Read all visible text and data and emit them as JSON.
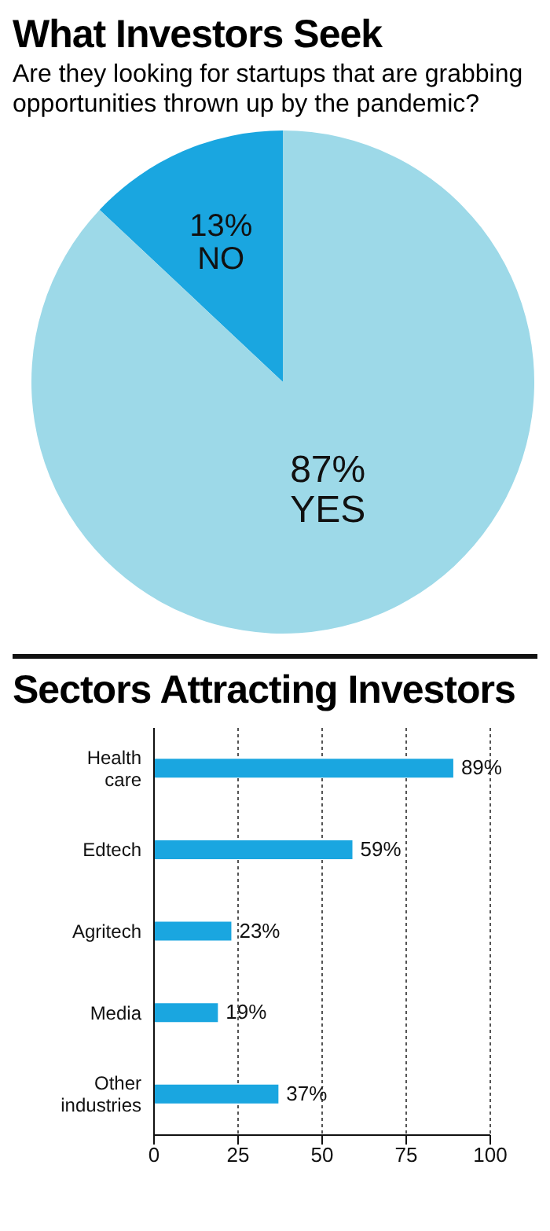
{
  "chart_data": [
    {
      "type": "pie",
      "title": "What Investors Seek",
      "subtitle": "Are they looking for startups that are grabbing opportunities thrown up by the pandemic?",
      "categories": [
        "NO",
        "YES"
      ],
      "values": [
        13,
        87
      ],
      "colors": [
        "#1aa6e0",
        "#9dd9e8"
      ],
      "value_labels": [
        "13%",
        "87%"
      ]
    },
    {
      "type": "bar",
      "orientation": "horizontal",
      "title": "Sectors Attracting Investors",
      "categories": [
        "Health care",
        "Edtech",
        "Agritech",
        "Media",
        "Other industries"
      ],
      "values": [
        89,
        59,
        23,
        19,
        37
      ],
      "color": "#1aa6e0",
      "value_labels": [
        "89%",
        "59%",
        "23%",
        "19%",
        "37%"
      ],
      "xlim": [
        0,
        100
      ],
      "xticks": [
        0,
        25,
        50,
        75,
        100
      ],
      "grid": "x"
    }
  ]
}
